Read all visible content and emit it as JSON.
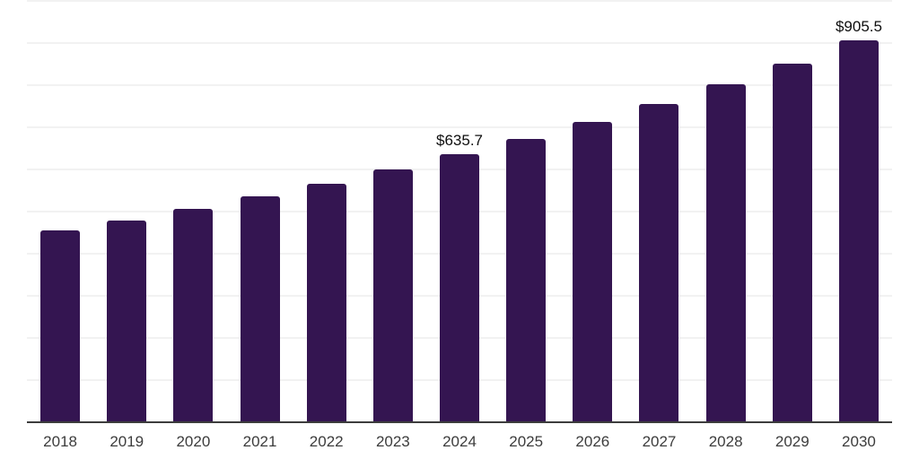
{
  "chart_data": {
    "type": "bar",
    "title": "",
    "xlabel": "",
    "ylabel": "",
    "categories": [
      "2018",
      "2019",
      "2020",
      "2021",
      "2022",
      "2023",
      "2024",
      "2025",
      "2026",
      "2027",
      "2028",
      "2029",
      "2030"
    ],
    "values": [
      456.0,
      479.0,
      506.0,
      536.0,
      566.0,
      600.0,
      635.7,
      672.5,
      713.0,
      755.5,
      801.5,
      851.5,
      905.5
    ],
    "value_labels": {
      "2024": "$635.7",
      "2030": "$905.5"
    },
    "ylim": [
      0,
      1000
    ],
    "gridline_step": 100,
    "grid": "horizontal",
    "legend_position": "none",
    "y_tick_labels_visible": false,
    "colors": {
      "bar": "#341551",
      "grid": "#f2f2f2",
      "axis": "#3d3d3d",
      "tick_label": "#3c3c3c",
      "value_label": "#0f0f0f",
      "background": "#ffffff"
    }
  }
}
